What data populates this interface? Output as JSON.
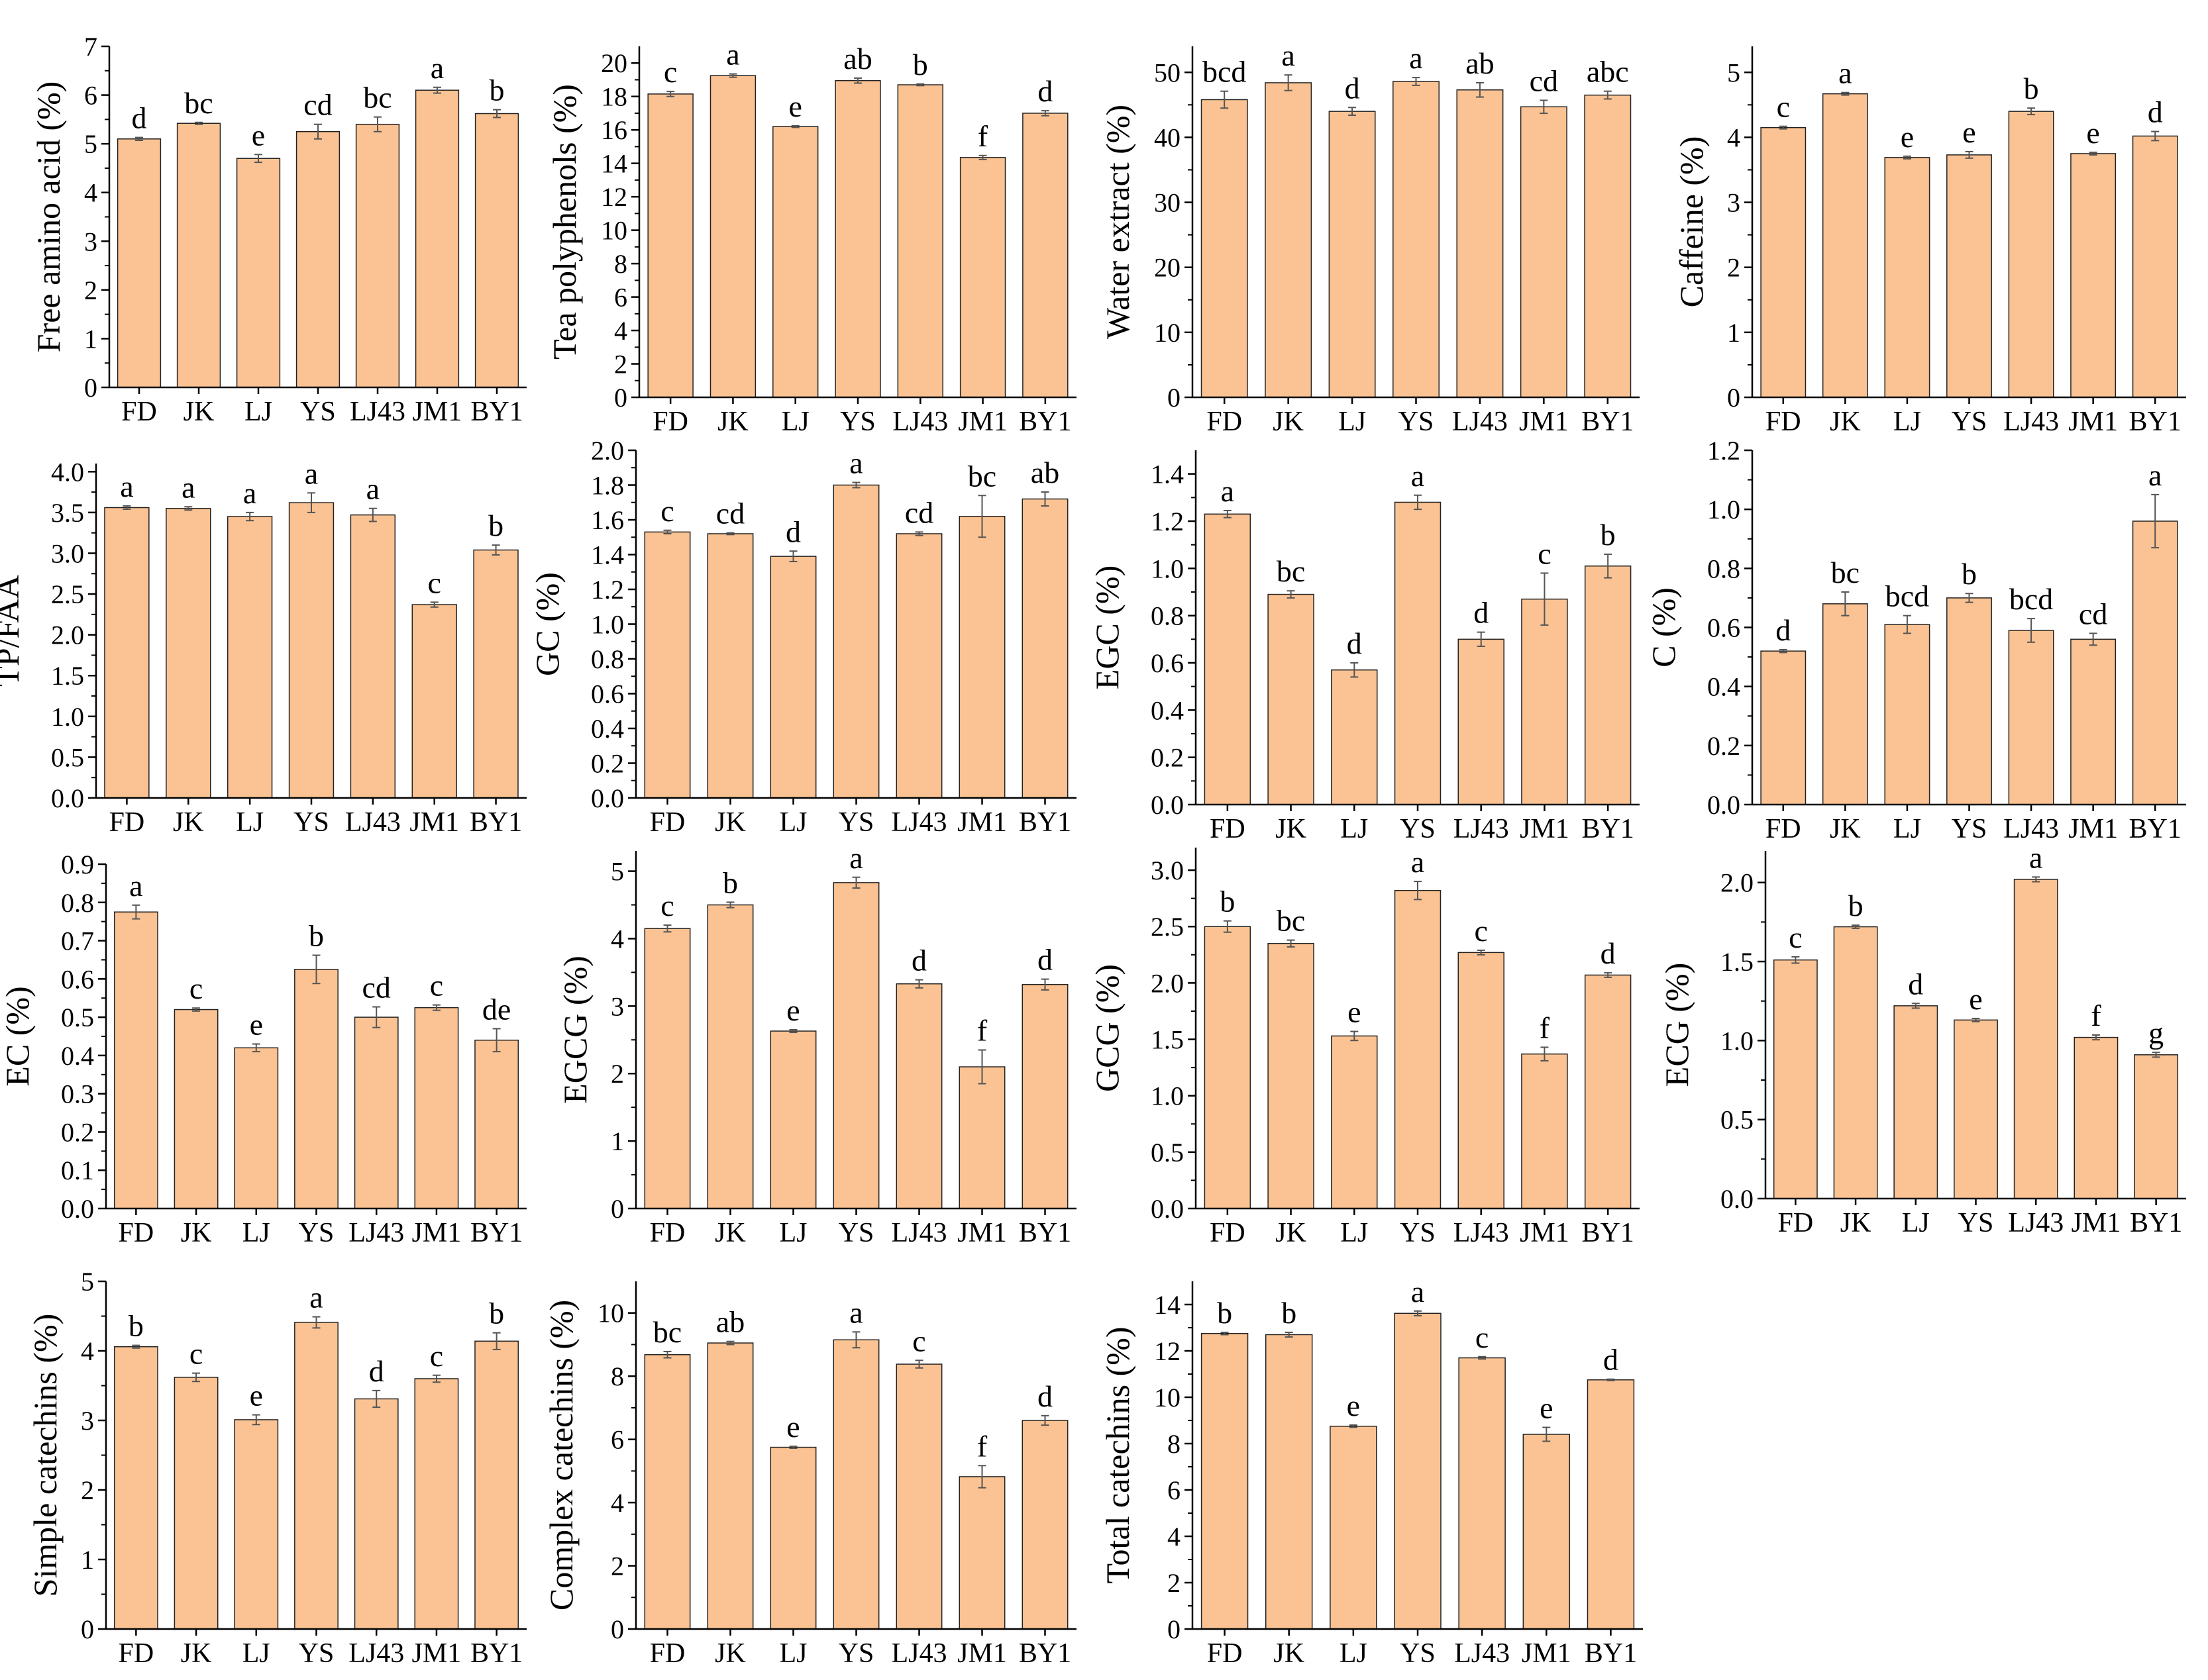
{
  "theme": {
    "bar_fill": "#FBC393",
    "bar_stroke": "#222222",
    "axis_color": "#000000",
    "errorbar_color": "#555555"
  },
  "chart_data": [
    {
      "type": "bar",
      "ylabel": "Free amino acid (%)",
      "ylim": [
        0,
        7
      ],
      "ticks": [
        0,
        1,
        2,
        3,
        4,
        5,
        6,
        7
      ],
      "tick_labels": [
        "0",
        "1",
        "2",
        "3",
        "4",
        "5",
        "6",
        "7"
      ],
      "categories": [
        "FD",
        "JK",
        "LJ",
        "YS",
        "LJ43",
        "JM1",
        "BY1"
      ],
      "values": [
        5.1,
        5.42,
        4.7,
        5.25,
        5.4,
        6.1,
        5.62
      ],
      "errors": [
        0.03,
        0.02,
        0.08,
        0.15,
        0.15,
        0.06,
        0.08
      ],
      "letters": [
        "d",
        "bc",
        "e",
        "cd",
        "bc",
        "a",
        "b"
      ]
    },
    {
      "type": "bar",
      "ylabel": "Tea polyphenols (%)",
      "ylim": [
        0,
        21
      ],
      "ticks": [
        0,
        2,
        4,
        6,
        8,
        10,
        12,
        14,
        16,
        18,
        20
      ],
      "tick_labels": [
        "0",
        "2",
        "4",
        "6",
        "8",
        "10",
        "12",
        "14",
        "16",
        "18",
        "20"
      ],
      "categories": [
        "FD",
        "JK",
        "LJ",
        "YS",
        "LJ43",
        "JM1",
        "BY1"
      ],
      "values": [
        18.15,
        19.25,
        16.2,
        18.95,
        18.7,
        14.35,
        17.0
      ],
      "errors": [
        0.15,
        0.1,
        0.05,
        0.15,
        0.05,
        0.12,
        0.15
      ],
      "letters": [
        "c",
        "a",
        "e",
        "ab",
        "b",
        "f",
        "d"
      ]
    },
    {
      "type": "bar",
      "ylabel": "Water extract (%)",
      "ylim": [
        0,
        54
      ],
      "ticks": [
        0,
        10,
        20,
        30,
        40,
        50
      ],
      "tick_labels": [
        "0",
        "10",
        "20",
        "30",
        "40",
        "50"
      ],
      "categories": [
        "FD",
        "JK",
        "LJ",
        "YS",
        "LJ43",
        "JM1",
        "BY1"
      ],
      "values": [
        45.8,
        48.4,
        44.0,
        48.6,
        47.3,
        44.7,
        46.5
      ],
      "errors": [
        1.3,
        1.2,
        0.6,
        0.6,
        1.1,
        1.0,
        0.6
      ],
      "letters": [
        "bcd",
        "a",
        "d",
        "a",
        "ab",
        "cd",
        "abc"
      ]
    },
    {
      "type": "bar",
      "ylabel": "Caffeine (%)",
      "ylim": [
        0,
        5.4
      ],
      "ticks": [
        0,
        1,
        2,
        3,
        4,
        5
      ],
      "tick_labels": [
        "0",
        "1",
        "2",
        "3",
        "4",
        "5"
      ],
      "categories": [
        "FD",
        "JK",
        "LJ",
        "YS",
        "LJ43",
        "JM1",
        "BY1"
      ],
      "values": [
        4.15,
        4.67,
        3.69,
        3.73,
        4.4,
        3.75,
        4.02
      ],
      "errors": [
        0.02,
        0.02,
        0.02,
        0.05,
        0.05,
        0.02,
        0.07
      ],
      "letters": [
        "c",
        "a",
        "e",
        "e",
        "b",
        "e",
        "d"
      ]
    },
    {
      "type": "bar",
      "ylabel": "TP/FAA",
      "ylim": [
        0,
        4.1
      ],
      "ticks": [
        0,
        0.5,
        1,
        1.5,
        2,
        2.5,
        3,
        3.5,
        4
      ],
      "tick_labels": [
        "0.0",
        "0.5",
        "1.0",
        "1.5",
        "2.0",
        "2.5",
        "3.0",
        "3.5",
        "4.0"
      ],
      "categories": [
        "FD",
        "JK",
        "LJ",
        "YS",
        "LJ43",
        "JM1",
        "BY1"
      ],
      "values": [
        3.56,
        3.55,
        3.45,
        3.62,
        3.47,
        2.37,
        3.04
      ],
      "errors": [
        0.02,
        0.02,
        0.05,
        0.12,
        0.08,
        0.03,
        0.06
      ],
      "letters": [
        "a",
        "a",
        "a",
        "a",
        "a",
        "c",
        "b"
      ]
    },
    {
      "type": "bar",
      "ylabel": "GC (%)",
      "ylim": [
        0,
        2.0
      ],
      "ticks": [
        0,
        0.2,
        0.4,
        0.6,
        0.8,
        1.0,
        1.2,
        1.4,
        1.6,
        1.8,
        2.0
      ],
      "tick_labels": [
        "0.0",
        "0.2",
        "0.4",
        "0.6",
        "0.8",
        "1.0",
        "1.2",
        "1.4",
        "1.6",
        "1.8",
        "2.0"
      ],
      "categories": [
        "FD",
        "JK",
        "LJ",
        "YS",
        "LJ43",
        "JM1",
        "BY1"
      ],
      "values": [
        1.53,
        1.52,
        1.39,
        1.8,
        1.52,
        1.62,
        1.72
      ],
      "errors": [
        0.01,
        0.005,
        0.03,
        0.015,
        0.01,
        0.12,
        0.04
      ],
      "letters": [
        "c",
        "cd",
        "d",
        "a",
        "cd",
        "bc",
        "ab"
      ]
    },
    {
      "type": "bar",
      "ylabel": "EGC (%)",
      "ylim": [
        0,
        1.5
      ],
      "ticks": [
        0,
        0.2,
        0.4,
        0.6,
        0.8,
        1.0,
        1.2,
        1.4
      ],
      "tick_labels": [
        "0.0",
        "0.2",
        "0.4",
        "0.6",
        "0.8",
        "1.0",
        "1.2",
        "1.4"
      ],
      "categories": [
        "FD",
        "JK",
        "LJ",
        "YS",
        "LJ43",
        "JM1",
        "BY1"
      ],
      "values": [
        1.23,
        0.89,
        0.57,
        1.28,
        0.7,
        0.87,
        1.01
      ],
      "errors": [
        0.015,
        0.015,
        0.03,
        0.03,
        0.03,
        0.11,
        0.05
      ],
      "letters": [
        "a",
        "bc",
        "d",
        "a",
        "d",
        "c",
        "b"
      ]
    },
    {
      "type": "bar",
      "ylabel": "C (%)",
      "ylim": [
        0,
        1.2
      ],
      "ticks": [
        0,
        0.2,
        0.4,
        0.6,
        0.8,
        1.0,
        1.2
      ],
      "tick_labels": [
        "0.0",
        "0.2",
        "0.4",
        "0.6",
        "0.8",
        "1.0",
        "1.2"
      ],
      "categories": [
        "FD",
        "JK",
        "LJ",
        "YS",
        "LJ43",
        "JM1",
        "BY1"
      ],
      "values": [
        0.52,
        0.68,
        0.61,
        0.7,
        0.59,
        0.56,
        0.96
      ],
      "errors": [
        0.005,
        0.04,
        0.03,
        0.015,
        0.04,
        0.02,
        0.09
      ],
      "letters": [
        "d",
        "bc",
        "bcd",
        "b",
        "bcd",
        "cd",
        "a"
      ]
    },
    {
      "type": "bar",
      "ylabel": "EC (%)",
      "ylim": [
        0,
        0.9
      ],
      "ticks": [
        0,
        0.1,
        0.2,
        0.3,
        0.4,
        0.5,
        0.6,
        0.7,
        0.8,
        0.9
      ],
      "tick_labels": [
        "0.0",
        "0.1",
        "0.2",
        "0.3",
        "0.4",
        "0.5",
        "0.6",
        "0.7",
        "0.8",
        "0.9"
      ],
      "categories": [
        "FD",
        "JK",
        "LJ",
        "YS",
        "LJ43",
        "JM1",
        "BY1"
      ],
      "values": [
        0.775,
        0.52,
        0.42,
        0.625,
        0.5,
        0.525,
        0.44
      ],
      "errors": [
        0.018,
        0.004,
        0.01,
        0.037,
        0.027,
        0.007,
        0.03
      ],
      "letters": [
        "a",
        "c",
        "e",
        "b",
        "cd",
        "c",
        "de"
      ]
    },
    {
      "type": "bar",
      "ylabel": "EGCG (%)",
      "ylim": [
        0,
        5.3
      ],
      "ticks": [
        0,
        1,
        2,
        3,
        4,
        5
      ],
      "tick_labels": [
        "0",
        "1",
        "2",
        "3",
        "4",
        "5"
      ],
      "categories": [
        "FD",
        "JK",
        "LJ",
        "YS",
        "LJ43",
        "JM1",
        "BY1"
      ],
      "values": [
        4.15,
        4.5,
        2.63,
        4.83,
        3.33,
        2.1,
        3.32
      ],
      "errors": [
        0.05,
        0.04,
        0.02,
        0.08,
        0.06,
        0.25,
        0.08
      ],
      "letters": [
        "c",
        "b",
        "e",
        "a",
        "d",
        "f",
        "d"
      ]
    },
    {
      "type": "bar",
      "ylabel": "GCG (%)",
      "ylim": [
        0,
        3.2
      ],
      "ticks": [
        0,
        0.5,
        1,
        1.5,
        2,
        2.5,
        3
      ],
      "tick_labels": [
        "0.0",
        "0.5",
        "1.0",
        "1.5",
        "2.0",
        "2.5",
        "3.0"
      ],
      "categories": [
        "FD",
        "JK",
        "LJ",
        "YS",
        "LJ43",
        "JM1",
        "BY1"
      ],
      "values": [
        2.5,
        2.35,
        1.53,
        2.82,
        2.27,
        1.37,
        2.07
      ],
      "errors": [
        0.05,
        0.03,
        0.04,
        0.08,
        0.02,
        0.06,
        0.02
      ],
      "letters": [
        "b",
        "bc",
        "e",
        "a",
        "c",
        "f",
        "d"
      ]
    },
    {
      "type": "bar",
      "ylabel": "ECG (%)",
      "ylim": [
        0,
        2.2
      ],
      "ticks": [
        0,
        0.5,
        1,
        1.5,
        2
      ],
      "tick_labels": [
        "0.0",
        "0.5",
        "1.0",
        "1.5",
        "2.0"
      ],
      "categories": [
        "FD",
        "JK",
        "LJ",
        "YS",
        "LJ43",
        "JM1",
        "BY1"
      ],
      "values": [
        1.51,
        1.72,
        1.22,
        1.13,
        2.02,
        1.02,
        0.91
      ],
      "errors": [
        0.02,
        0.01,
        0.015,
        0.01,
        0.015,
        0.015,
        0.015
      ],
      "letters": [
        "c",
        "b",
        "d",
        "e",
        "a",
        "f",
        "g"
      ]
    },
    {
      "type": "bar",
      "ylabel": "Simple catechins (%)",
      "ylim": [
        0,
        5
      ],
      "ticks": [
        0,
        1,
        2,
        3,
        4,
        5
      ],
      "tick_labels": [
        "0",
        "1",
        "2",
        "3",
        "4",
        "5"
      ],
      "categories": [
        "FD",
        "JK",
        "LJ",
        "YS",
        "LJ43",
        "JM1",
        "BY1"
      ],
      "values": [
        4.06,
        3.62,
        3.01,
        4.41,
        3.31,
        3.6,
        4.14
      ],
      "errors": [
        0.02,
        0.06,
        0.07,
        0.08,
        0.12,
        0.05,
        0.12
      ],
      "letters": [
        "b",
        "c",
        "e",
        "a",
        "d",
        "c",
        "b"
      ]
    },
    {
      "type": "bar",
      "ylabel": "Complex catechins (%)",
      "ylim": [
        0,
        11
      ],
      "ticks": [
        0,
        2,
        4,
        6,
        8,
        10
      ],
      "tick_labels": [
        "0",
        "2",
        "4",
        "6",
        "8",
        "10"
      ],
      "categories": [
        "FD",
        "JK",
        "LJ",
        "YS",
        "LJ43",
        "JM1",
        "BY1"
      ],
      "values": [
        8.68,
        9.05,
        5.75,
        9.15,
        8.38,
        4.82,
        6.6
      ],
      "errors": [
        0.1,
        0.05,
        0.03,
        0.25,
        0.12,
        0.35,
        0.15
      ],
      "letters": [
        "bc",
        "ab",
        "e",
        "a",
        "c",
        "f",
        "d"
      ]
    },
    {
      "type": "bar",
      "ylabel": "Total catechins (%)",
      "ylim": [
        0,
        15
      ],
      "ticks": [
        0,
        2,
        4,
        6,
        8,
        10,
        12,
        14
      ],
      "tick_labels": [
        "0",
        "2",
        "4",
        "6",
        "8",
        "10",
        "12",
        "14"
      ],
      "categories": [
        "FD",
        "JK",
        "LJ",
        "YS",
        "LJ43",
        "JM1",
        "BY1"
      ],
      "values": [
        12.75,
        12.7,
        8.75,
        13.62,
        11.7,
        8.4,
        10.75
      ],
      "errors": [
        0.05,
        0.1,
        0.05,
        0.1,
        0.05,
        0.3,
        0.03
      ],
      "letters": [
        "b",
        "b",
        "e",
        "a",
        "c",
        "e",
        "d"
      ]
    }
  ]
}
